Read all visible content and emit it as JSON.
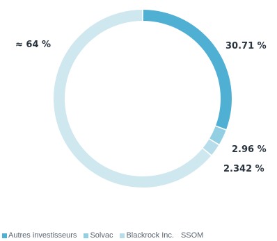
{
  "chart_data": {
    "type": "pie",
    "variant": "donut",
    "title": "",
    "slices": [
      {
        "label": "Autres investisseurs",
        "display": "30.71 %",
        "value": 30.71,
        "color": "#4fb0d4"
      },
      {
        "label": "Solvac",
        "display": "2.96 %",
        "value": 2.96,
        "color": "#93cfe3"
      },
      {
        "label": "Blackrock Inc.",
        "display": "2.342 %",
        "value": 2.342,
        "color": "#b7ddea"
      },
      {
        "label": "SSOM",
        "display": "≈ 64 %",
        "value": 64,
        "color": "#cfe7ef"
      }
    ],
    "legend_placement": "bottom"
  }
}
